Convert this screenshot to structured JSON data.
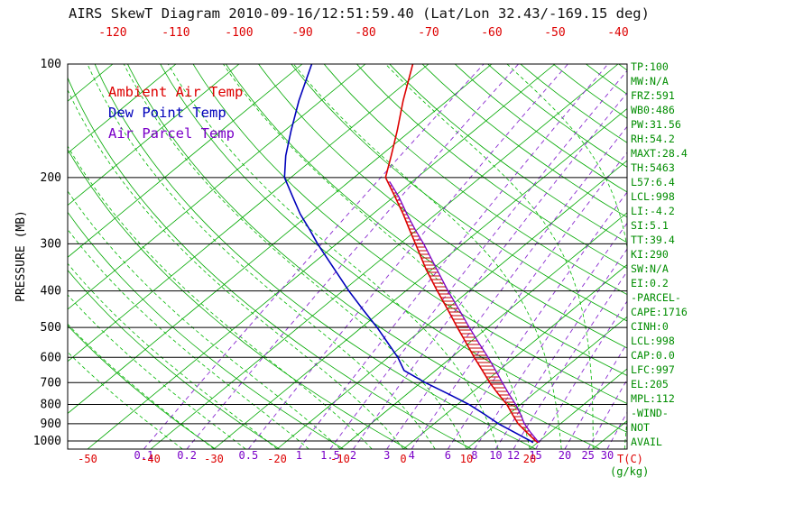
{
  "title": "AIRS SkewT Diagram 2010-09-16/12:51:59.40 (Lat/Lon 32.43/-169.15 deg)",
  "legend": [
    {
      "label": "Ambient Air Temp",
      "color": "#dd0000"
    },
    {
      "label": "Dew Point Temp",
      "color": "#0000bb"
    },
    {
      "label": "Air Parcel Temp",
      "color": "#7a00c8"
    }
  ],
  "axes": {
    "pressure_label": "PRESSURE (MB)",
    "pressure_ticks": [
      100,
      200,
      300,
      400,
      500,
      600,
      700,
      800,
      900,
      1000
    ],
    "top_temp_ticks": [
      -120,
      -110,
      -100,
      -90,
      -80,
      -70,
      -60,
      -50,
      -40
    ],
    "bottom_temp_ticks": [
      -50,
      -40,
      -30,
      -20,
      -10,
      0,
      10,
      20
    ],
    "temp_unit_label": "T(C)",
    "mixing_unit_label": "(g/kg)"
  },
  "stats": [
    "TP:100",
    "MW:N/A",
    "FRZ:591",
    "WB0:486",
    "PW:31.56",
    "RH:54.2",
    "MAXT:28.4",
    "TH:5463",
    "L57:6.4",
    "LCL:998",
    "LI:-4.2",
    "SI:5.1",
    "TT:39.4",
    "KI:290",
    "SW:N/A",
    "EI:0.2",
    "-PARCEL-",
    "CAPE:1716",
    "CINH:0",
    "LCL:998",
    "CAP:0.0",
    "LFC:997",
    "EL:205",
    "MPL:112",
    "-WIND-",
    "NOT",
    "AVAIL"
  ],
  "chart_data": {
    "type": "line",
    "title": "AIRS SkewT Diagram 2010-09-16/12:51:59.40 (Lat/Lon 32.43/-169.15 deg)",
    "xlabel": "T(C)",
    "ylabel": "PRESSURE (MB)",
    "y_scale": "log",
    "ylim": [
      1050,
      95
    ],
    "grid": "skew-t log-p: isotherms tilt up-right; dry adiabats curve up-left",
    "legend_position": "upper-left inside plot",
    "series": [
      {
        "name": "Ambient Air Temp",
        "color": "#dd0000",
        "style": "solid",
        "points_p_t": [
          [
            100,
            -72.5
          ],
          [
            125,
            -67.0
          ],
          [
            150,
            -62.2
          ],
          [
            175,
            -58.3
          ],
          [
            200,
            -55.0
          ],
          [
            225,
            -49.8
          ],
          [
            250,
            -45.2
          ],
          [
            275,
            -41.2
          ],
          [
            300,
            -37.5
          ],
          [
            350,
            -31.0
          ],
          [
            400,
            -25.0
          ],
          [
            450,
            -19.6
          ],
          [
            500,
            -14.8
          ],
          [
            550,
            -10.4
          ],
          [
            600,
            -6.4
          ],
          [
            650,
            -2.6
          ],
          [
            700,
            0.9
          ],
          [
            750,
            4.4
          ],
          [
            800,
            7.8
          ],
          [
            850,
            10.6
          ],
          [
            900,
            13.3
          ],
          [
            950,
            16.4
          ],
          [
            1000,
            19.4
          ],
          [
            1010,
            20.1
          ]
        ]
      },
      {
        "name": "Dew Point Temp",
        "color": "#0000bb",
        "style": "solid",
        "points_p_t": [
          [
            100,
            -88.5
          ],
          [
            125,
            -83.5
          ],
          [
            150,
            -79.0
          ],
          [
            175,
            -75.0
          ],
          [
            200,
            -71.0
          ],
          [
            225,
            -66.0
          ],
          [
            250,
            -61.5
          ],
          [
            275,
            -57.0
          ],
          [
            300,
            -53.0
          ],
          [
            350,
            -45.5
          ],
          [
            400,
            -39.0
          ],
          [
            450,
            -33.0
          ],
          [
            500,
            -27.5
          ],
          [
            550,
            -22.8
          ],
          [
            600,
            -18.5
          ],
          [
            650,
            -15.0
          ],
          [
            700,
            -9.3
          ],
          [
            750,
            -3.5
          ],
          [
            800,
            1.8
          ],
          [
            850,
            6.2
          ],
          [
            900,
            10.2
          ],
          [
            950,
            14.5
          ],
          [
            1000,
            18.6
          ],
          [
            1010,
            19.3
          ]
        ]
      },
      {
        "name": "Air Parcel Temp",
        "color": "#7a00c8",
        "style": "solid",
        "points_p_t": [
          [
            205,
            -53.6
          ],
          [
            225,
            -49.2
          ],
          [
            250,
            -44.6
          ],
          [
            275,
            -40.3
          ],
          [
            300,
            -36.2
          ],
          [
            350,
            -29.3
          ],
          [
            400,
            -23.3
          ],
          [
            450,
            -17.8
          ],
          [
            500,
            -12.9
          ],
          [
            550,
            -8.4
          ],
          [
            600,
            -4.2
          ],
          [
            650,
            -0.5
          ],
          [
            700,
            2.9
          ],
          [
            750,
            6.1
          ],
          [
            800,
            9.2
          ],
          [
            850,
            11.9
          ],
          [
            900,
            14.3
          ],
          [
            950,
            17.0
          ],
          [
            1000,
            19.7
          ],
          [
            1010,
            20.3
          ]
        ]
      }
    ],
    "cape_region": {
      "between": [
        "Ambient Air Temp",
        "Air Parcel Temp"
      ],
      "p_top": 205,
      "p_bottom": 1005,
      "hatch": "horizontal red lines",
      "hatch_color": "#c80000"
    },
    "background": {
      "isotherms_c": {
        "min": -160,
        "max": 40,
        "step": 10,
        "color": "#00a800",
        "style": "solid"
      },
      "dry_adiabats_k": {
        "min": 240,
        "max": 450,
        "step": 10,
        "color": "#00a800",
        "style": "solid"
      },
      "moist_adiabats_c": {
        "min": -35,
        "max": 40,
        "step": 5,
        "color": "#00b800",
        "style": "dashed"
      },
      "mixing_ratio_gkg": {
        "values": [
          0.1,
          0.2,
          0.5,
          1,
          1.5,
          2,
          3,
          4,
          6,
          8,
          10,
          12,
          15,
          20,
          25,
          30
        ],
        "color": "#8a2bd0",
        "style": "dashed"
      },
      "pressure_lines_mb": [
        100,
        200,
        300,
        400,
        500,
        600,
        700,
        800,
        900,
        1000
      ]
    }
  }
}
